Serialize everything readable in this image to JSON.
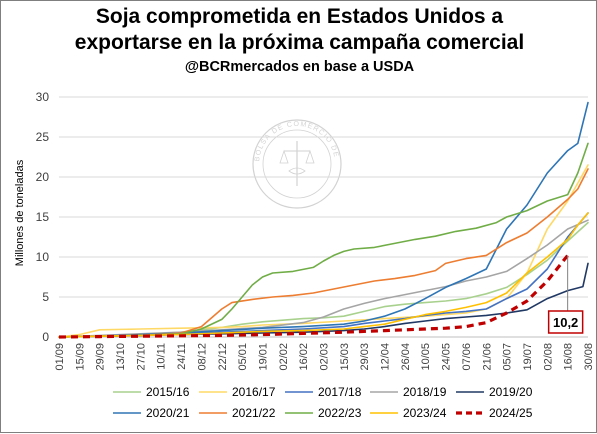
{
  "title": {
    "line1": "Soja comprometida en Estados Unidos a",
    "line2": "exportarse en la próxima campaña comercial",
    "subtitle": "@BCRmercados en base a USDA"
  },
  "watermark": "BOLSA DE COMERCIO DE ROSARIO",
  "chart_data": {
    "type": "line",
    "title": "Soja comprometida en Estados Unidos a exportarse en la próxima campaña comercial",
    "subtitle": "@BCRmercados en base a USDA",
    "ylabel": "Millones de toneladas",
    "xlabel": "",
    "ylim": [
      0,
      30
    ],
    "yticks": [
      0,
      5,
      10,
      15,
      20,
      25,
      30
    ],
    "grid": true,
    "legend_position": "bottom",
    "x_tick_labels": [
      "01/09",
      "15/09",
      "29/09",
      "13/10",
      "27/10",
      "10/11",
      "24/11",
      "08/12",
      "22/12",
      "05/01",
      "19/01",
      "02/02",
      "16/02",
      "02/03",
      "15/03",
      "29/03",
      "12/04",
      "26/04",
      "10/05",
      "24/05",
      "07/06",
      "21/06",
      "05/07",
      "19/07",
      "02/08",
      "16/08",
      "30/08"
    ],
    "x_domain": [
      0,
      52
    ],
    "annotation": {
      "text": "10,2",
      "x": 50,
      "y": 10.2,
      "color": "#c00000"
    },
    "series": [
      {
        "name": "2015/16",
        "color": "#a9d18e",
        "width": 1.6,
        "dash": "",
        "points": [
          [
            0,
            0
          ],
          [
            4,
            0.1
          ],
          [
            8,
            0.3
          ],
          [
            12,
            0.6
          ],
          [
            16,
            1.2
          ],
          [
            18,
            1.6
          ],
          [
            20,
            1.9
          ],
          [
            22,
            2.1
          ],
          [
            24,
            2.3
          ],
          [
            26,
            2.4
          ],
          [
            28,
            2.6
          ],
          [
            30,
            3.2
          ],
          [
            32,
            3.8
          ],
          [
            34,
            4.1
          ],
          [
            36,
            4.3
          ],
          [
            38,
            4.5
          ],
          [
            40,
            4.8
          ],
          [
            42,
            5.4
          ],
          [
            44,
            6.2
          ],
          [
            46,
            7.8
          ],
          [
            48,
            9.6
          ],
          [
            50,
            12.0
          ],
          [
            52,
            14.3
          ]
        ]
      },
      {
        "name": "2016/17",
        "color": "#ffd966",
        "width": 1.6,
        "dash": "",
        "points": [
          [
            0,
            0
          ],
          [
            2,
            0.3
          ],
          [
            4,
            0.9
          ],
          [
            8,
            1.0
          ],
          [
            12,
            1.1
          ],
          [
            16,
            1.2
          ],
          [
            18,
            1.3
          ],
          [
            20,
            1.5
          ],
          [
            24,
            1.7
          ],
          [
            28,
            2.0
          ],
          [
            32,
            2.3
          ],
          [
            36,
            2.6
          ],
          [
            40,
            3.0
          ],
          [
            42,
            3.5
          ],
          [
            44,
            4.8
          ],
          [
            46,
            8.0
          ],
          [
            48,
            13.5
          ],
          [
            50,
            17.0
          ],
          [
            52,
            21.5
          ]
        ]
      },
      {
        "name": "2017/18",
        "color": "#4472c4",
        "width": 1.6,
        "dash": "",
        "points": [
          [
            0,
            0
          ],
          [
            4,
            0.1
          ],
          [
            8,
            0.2
          ],
          [
            12,
            0.4
          ],
          [
            16,
            0.6
          ],
          [
            20,
            0.8
          ],
          [
            24,
            1.0
          ],
          [
            28,
            1.3
          ],
          [
            30,
            1.7
          ],
          [
            32,
            2.0
          ],
          [
            34,
            2.3
          ],
          [
            36,
            2.7
          ],
          [
            38,
            3.0
          ],
          [
            40,
            3.2
          ],
          [
            42,
            3.5
          ],
          [
            44,
            4.8
          ],
          [
            46,
            6.0
          ],
          [
            48,
            8.5
          ],
          [
            50,
            12.5
          ],
          [
            52,
            15.5
          ]
        ]
      },
      {
        "name": "2018/19",
        "color": "#a5a5a5",
        "width": 1.6,
        "dash": "",
        "points": [
          [
            0,
            0
          ],
          [
            4,
            0.2
          ],
          [
            8,
            0.4
          ],
          [
            12,
            0.6
          ],
          [
            16,
            0.9
          ],
          [
            20,
            1.2
          ],
          [
            24,
            1.8
          ],
          [
            26,
            2.5
          ],
          [
            28,
            3.5
          ],
          [
            30,
            4.2
          ],
          [
            32,
            4.8
          ],
          [
            34,
            5.3
          ],
          [
            36,
            5.8
          ],
          [
            38,
            6.3
          ],
          [
            40,
            7.0
          ],
          [
            42,
            7.5
          ],
          [
            44,
            8.2
          ],
          [
            46,
            9.8
          ],
          [
            48,
            11.5
          ],
          [
            50,
            13.5
          ],
          [
            52,
            14.6
          ]
        ]
      },
      {
        "name": "2019/20",
        "color": "#203864",
        "width": 1.6,
        "dash": "",
        "points": [
          [
            0,
            0
          ],
          [
            4,
            0.1
          ],
          [
            8,
            0.2
          ],
          [
            12,
            0.3
          ],
          [
            16,
            0.4
          ],
          [
            20,
            0.5
          ],
          [
            24,
            0.6
          ],
          [
            28,
            0.8
          ],
          [
            30,
            1.0
          ],
          [
            32,
            1.3
          ],
          [
            34,
            1.7
          ],
          [
            36,
            2.0
          ],
          [
            38,
            2.3
          ],
          [
            40,
            2.5
          ],
          [
            42,
            2.7
          ],
          [
            44,
            3.0
          ],
          [
            46,
            3.4
          ],
          [
            48,
            4.8
          ],
          [
            50,
            5.8
          ],
          [
            51.5,
            6.3
          ],
          [
            52,
            9.2
          ]
        ]
      },
      {
        "name": "2020/21",
        "color": "#2e75b6",
        "width": 1.6,
        "dash": "",
        "points": [
          [
            0,
            0
          ],
          [
            4,
            0.1
          ],
          [
            8,
            0.3
          ],
          [
            12,
            0.5
          ],
          [
            16,
            0.8
          ],
          [
            20,
            1.1
          ],
          [
            24,
            1.3
          ],
          [
            28,
            1.6
          ],
          [
            30,
            2.0
          ],
          [
            32,
            2.6
          ],
          [
            34,
            3.5
          ],
          [
            36,
            4.8
          ],
          [
            38,
            6.2
          ],
          [
            40,
            7.3
          ],
          [
            42,
            8.5
          ],
          [
            44,
            13.5
          ],
          [
            46,
            16.5
          ],
          [
            48,
            20.5
          ],
          [
            50,
            23.3
          ],
          [
            51,
            24.2
          ],
          [
            52,
            29.3
          ]
        ]
      },
      {
        "name": "2021/22",
        "color": "#ed7d31",
        "width": 1.6,
        "dash": "",
        "points": [
          [
            0,
            0
          ],
          [
            4,
            0.1
          ],
          [
            8,
            0.2
          ],
          [
            12,
            0.5
          ],
          [
            14,
            1.3
          ],
          [
            16,
            3.5
          ],
          [
            17,
            4.3
          ],
          [
            19,
            4.7
          ],
          [
            21,
            5.0
          ],
          [
            23,
            5.2
          ],
          [
            25,
            5.5
          ],
          [
            27,
            6.0
          ],
          [
            29,
            6.5
          ],
          [
            31,
            7.0
          ],
          [
            33,
            7.3
          ],
          [
            35,
            7.7
          ],
          [
            37,
            8.3
          ],
          [
            38,
            9.2
          ],
          [
            40,
            9.8
          ],
          [
            42,
            10.2
          ],
          [
            44,
            11.8
          ],
          [
            46,
            13.0
          ],
          [
            48,
            15.0
          ],
          [
            50,
            17.2
          ],
          [
            51,
            18.5
          ],
          [
            52,
            21.0
          ]
        ]
      },
      {
        "name": "2022/23",
        "color": "#70ad47",
        "width": 1.6,
        "dash": "",
        "points": [
          [
            0,
            0
          ],
          [
            4,
            0.1
          ],
          [
            8,
            0.2
          ],
          [
            12,
            0.4
          ],
          [
            14,
            1.0
          ],
          [
            16,
            2.2
          ],
          [
            17,
            3.5
          ],
          [
            18,
            5.0
          ],
          [
            19,
            6.5
          ],
          [
            20,
            7.5
          ],
          [
            21,
            8.0
          ],
          [
            23,
            8.2
          ],
          [
            25,
            8.7
          ],
          [
            26,
            9.5
          ],
          [
            27,
            10.2
          ],
          [
            28,
            10.7
          ],
          [
            29,
            11.0
          ],
          [
            31,
            11.2
          ],
          [
            33,
            11.7
          ],
          [
            35,
            12.2
          ],
          [
            37,
            12.6
          ],
          [
            39,
            13.2
          ],
          [
            41,
            13.6
          ],
          [
            43,
            14.3
          ],
          [
            44,
            15.0
          ],
          [
            46,
            15.8
          ],
          [
            48,
            17.0
          ],
          [
            50,
            17.8
          ],
          [
            51,
            20.5
          ],
          [
            52,
            24.2
          ]
        ]
      },
      {
        "name": "2023/24",
        "color": "#ffc000",
        "width": 1.6,
        "dash": "",
        "points": [
          [
            0,
            0
          ],
          [
            4,
            0.1
          ],
          [
            8,
            0.2
          ],
          [
            12,
            0.3
          ],
          [
            16,
            0.5
          ],
          [
            20,
            0.7
          ],
          [
            24,
            0.8
          ],
          [
            28,
            1.0
          ],
          [
            30,
            1.3
          ],
          [
            32,
            1.6
          ],
          [
            34,
            2.2
          ],
          [
            36,
            2.8
          ],
          [
            38,
            3.2
          ],
          [
            40,
            3.7
          ],
          [
            42,
            4.3
          ],
          [
            44,
            5.5
          ],
          [
            46,
            8.0
          ],
          [
            48,
            10.0
          ],
          [
            50,
            12.2
          ],
          [
            51,
            14.0
          ],
          [
            52,
            15.5
          ]
        ]
      },
      {
        "name": "2024/25",
        "color": "#c00000",
        "width": 3.2,
        "dash": "7 5",
        "points": [
          [
            0,
            0
          ],
          [
            4,
            0.05
          ],
          [
            8,
            0.1
          ],
          [
            12,
            0.15
          ],
          [
            16,
            0.2
          ],
          [
            20,
            0.3
          ],
          [
            24,
            0.45
          ],
          [
            28,
            0.6
          ],
          [
            32,
            0.8
          ],
          [
            34,
            0.9
          ],
          [
            36,
            1.0
          ],
          [
            38,
            1.1
          ],
          [
            40,
            1.3
          ],
          [
            42,
            1.8
          ],
          [
            44,
            3.0
          ],
          [
            46,
            4.5
          ],
          [
            48,
            7.0
          ],
          [
            50,
            10.2
          ]
        ]
      }
    ]
  }
}
